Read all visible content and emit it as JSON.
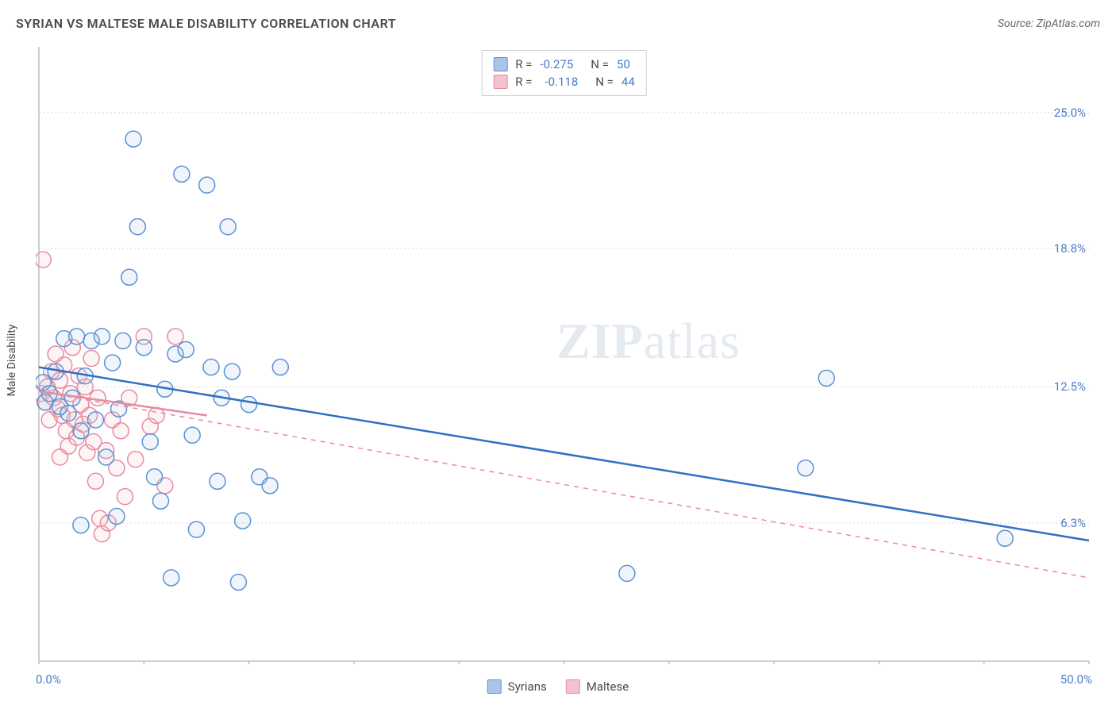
{
  "header": {
    "title": "SYRIAN VS MALTESE MALE DISABILITY CORRELATION CHART",
    "source": "Source: ZipAtlas.com"
  },
  "chart": {
    "type": "scatter",
    "y_axis_label": "Male Disability",
    "background_color": "#ffffff",
    "grid_color": "#d8d8d8",
    "axis_color": "#bfbfbf",
    "xlim": [
      0,
      50
    ],
    "ylim": [
      0,
      28
    ],
    "x_tick_positions": [
      0,
      5,
      10,
      15,
      20,
      25,
      30,
      35,
      40,
      45,
      50
    ],
    "x_tick_labels": {
      "left": "0.0%",
      "right": "50.0%"
    },
    "y_gridlines": [
      6.3,
      12.5,
      18.8,
      25.0
    ],
    "y_tick_labels": [
      "6.3%",
      "12.5%",
      "18.8%",
      "25.0%"
    ],
    "marker_radius": 10,
    "marker_stroke_width": 1.5,
    "marker_fill_opacity": 0.18,
    "watermark": {
      "zip": "ZIP",
      "atlas": "atlas"
    },
    "series": [
      {
        "name": "Syrians",
        "color_stroke": "#5b92d4",
        "color_fill": "#a9c6e8",
        "trend": {
          "y_at_x0": 13.4,
          "y_at_x50": 5.5,
          "style": "solid",
          "width": 2.5,
          "x_end": 50
        },
        "stats": {
          "R": "-0.275",
          "N": "50"
        },
        "points": [
          [
            0.2,
            12.7
          ],
          [
            0.3,
            11.8
          ],
          [
            0.5,
            12.2
          ],
          [
            0.8,
            13.2
          ],
          [
            1.0,
            11.6
          ],
          [
            1.2,
            14.7
          ],
          [
            1.4,
            11.3
          ],
          [
            1.6,
            12.0
          ],
          [
            1.8,
            14.8
          ],
          [
            2.0,
            10.5
          ],
          [
            2.2,
            13.0
          ],
          [
            2.5,
            14.6
          ],
          [
            2.7,
            11.0
          ],
          [
            3.0,
            14.8
          ],
          [
            3.2,
            9.3
          ],
          [
            3.5,
            13.6
          ],
          [
            3.8,
            11.5
          ],
          [
            4.0,
            14.6
          ],
          [
            4.3,
            17.5
          ],
          [
            4.5,
            23.8
          ],
          [
            4.7,
            19.8
          ],
          [
            5.0,
            14.3
          ],
          [
            5.3,
            10.0
          ],
          [
            5.5,
            8.4
          ],
          [
            3.7,
            6.6
          ],
          [
            5.8,
            7.3
          ],
          [
            6.0,
            12.4
          ],
          [
            6.3,
            3.8
          ],
          [
            6.5,
            14.0
          ],
          [
            6.8,
            22.2
          ],
          [
            7.0,
            14.2
          ],
          [
            7.3,
            10.3
          ],
          [
            7.5,
            6.0
          ],
          [
            8.0,
            21.7
          ],
          [
            8.2,
            13.4
          ],
          [
            8.5,
            8.2
          ],
          [
            8.7,
            12.0
          ],
          [
            9.0,
            19.8
          ],
          [
            9.2,
            13.2
          ],
          [
            9.5,
            3.6
          ],
          [
            9.7,
            6.4
          ],
          [
            10.0,
            11.7
          ],
          [
            10.5,
            8.4
          ],
          [
            11.0,
            8.0
          ],
          [
            11.5,
            13.4
          ],
          [
            28.0,
            4.0
          ],
          [
            36.5,
            8.8
          ],
          [
            37.5,
            12.9
          ],
          [
            46.0,
            5.6
          ],
          [
            2.0,
            6.2
          ]
        ]
      },
      {
        "name": "Maltese",
        "color_stroke": "#e88ba0",
        "color_fill": "#f4c2cd",
        "trend": {
          "y_at_x0": 12.3,
          "y_at_x50": 3.8,
          "style": "dashed",
          "width": 1.5,
          "x_end": 50
        },
        "trend_solid": {
          "y_at_x0": 12.3,
          "y_at_x8": 11.2,
          "width": 2.5
        },
        "stats": {
          "R": "-0.118",
          "N": "44"
        },
        "points": [
          [
            0.1,
            12.2
          ],
          [
            0.2,
            18.3
          ],
          [
            0.3,
            11.8
          ],
          [
            0.4,
            12.5
          ],
          [
            0.5,
            11.0
          ],
          [
            0.6,
            13.2
          ],
          [
            0.7,
            12.0
          ],
          [
            0.8,
            14.0
          ],
          [
            0.9,
            11.5
          ],
          [
            1.0,
            12.8
          ],
          [
            1.1,
            11.2
          ],
          [
            1.2,
            13.5
          ],
          [
            1.3,
            10.5
          ],
          [
            1.4,
            9.8
          ],
          [
            1.5,
            12.2
          ],
          [
            1.6,
            14.3
          ],
          [
            1.7,
            11.0
          ],
          [
            1.8,
            10.2
          ],
          [
            1.9,
            13.0
          ],
          [
            2.0,
            11.7
          ],
          [
            2.1,
            10.8
          ],
          [
            2.2,
            12.5
          ],
          [
            2.3,
            9.5
          ],
          [
            2.4,
            11.2
          ],
          [
            2.5,
            13.8
          ],
          [
            2.6,
            10.0
          ],
          [
            2.7,
            8.2
          ],
          [
            2.8,
            12.0
          ],
          [
            2.9,
            6.5
          ],
          [
            3.0,
            5.8
          ],
          [
            3.2,
            9.6
          ],
          [
            3.3,
            6.3
          ],
          [
            3.5,
            11.0
          ],
          [
            3.7,
            8.8
          ],
          [
            3.9,
            10.5
          ],
          [
            4.1,
            7.5
          ],
          [
            4.3,
            12.0
          ],
          [
            4.6,
            9.2
          ],
          [
            5.0,
            14.8
          ],
          [
            5.3,
            10.7
          ],
          [
            5.6,
            11.2
          ],
          [
            6.0,
            8.0
          ],
          [
            6.5,
            14.8
          ],
          [
            1.0,
            9.3
          ]
        ]
      }
    ]
  },
  "bottom_legend": [
    {
      "label": "Syrians",
      "stroke": "#5b92d4",
      "fill": "#a9c6e8"
    },
    {
      "label": "Maltese",
      "stroke": "#e88ba0",
      "fill": "#f4c2cd"
    }
  ]
}
